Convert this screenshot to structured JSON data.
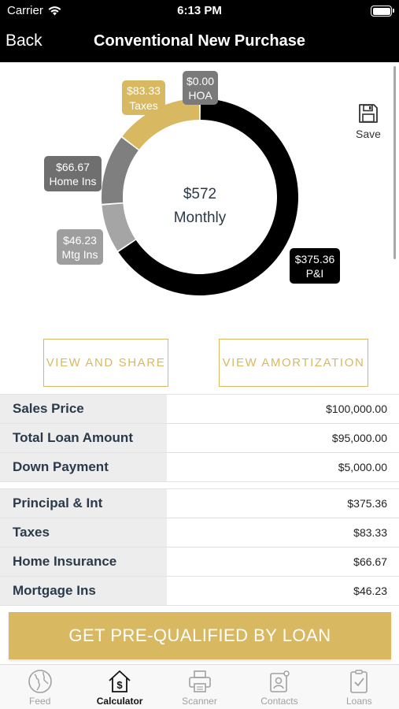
{
  "status_bar": {
    "carrier": "Carrier",
    "time": "6:13 PM"
  },
  "nav": {
    "back_label": "Back",
    "title": "Conventional New Purchase"
  },
  "chart": {
    "center_amount": "$572",
    "center_label": "Monthly",
    "segments": [
      {
        "key": "pi",
        "amount": 375.36,
        "label_amount": "$375.36",
        "label_name": "P&I",
        "color": "#000000"
      },
      {
        "key": "mtg",
        "amount": 46.23,
        "label_amount": "$46.23",
        "label_name": "Mtg Ins",
        "color": "#a5a5a5"
      },
      {
        "key": "home",
        "amount": 66.67,
        "label_amount": "$66.67",
        "label_name": "Home Ins",
        "color": "#7f7f7f"
      },
      {
        "key": "taxes",
        "amount": 83.33,
        "label_amount": "$83.33",
        "label_name": "Taxes",
        "color": "#d8b860"
      },
      {
        "key": "hoa",
        "amount": 0.0,
        "label_amount": "$0.00",
        "label_name": "HOA",
        "color": "#7a7a7a"
      }
    ]
  },
  "save": {
    "label": "Save"
  },
  "buttons": {
    "view_share": "VIEW AND SHARE",
    "view_amortization": "VIEW AMORTIZATION"
  },
  "loan_table": [
    {
      "label": "Sales Price",
      "value": "$100,000.00"
    },
    {
      "label": "Total Loan Amount",
      "value": "$95,000.00"
    },
    {
      "label": "Down Payment",
      "value": "$5,000.00"
    }
  ],
  "payment_table": [
    {
      "label": "Principal & Int",
      "value": "$375.36"
    },
    {
      "label": "Taxes",
      "value": "$83.33"
    },
    {
      "label": "Home Insurance",
      "value": "$66.67"
    },
    {
      "label": "Mortgage Ins",
      "value": "$46.23"
    }
  ],
  "cta": {
    "label": "GET PRE-QUALIFIED BY LOAN"
  },
  "tabs": [
    {
      "label": "Feed",
      "icon": "globe-icon"
    },
    {
      "label": "Calculator",
      "icon": "calculator-house-icon",
      "active": true
    },
    {
      "label": "Scanner",
      "icon": "printer-icon"
    },
    {
      "label": "Contacts",
      "icon": "contacts-icon"
    },
    {
      "label": "Loans",
      "icon": "clipboard-check-icon"
    }
  ],
  "colors": {
    "accent": "#d8b860",
    "text_dark": "#2b3a4a",
    "tab_inactive": "#a0a0a0"
  }
}
